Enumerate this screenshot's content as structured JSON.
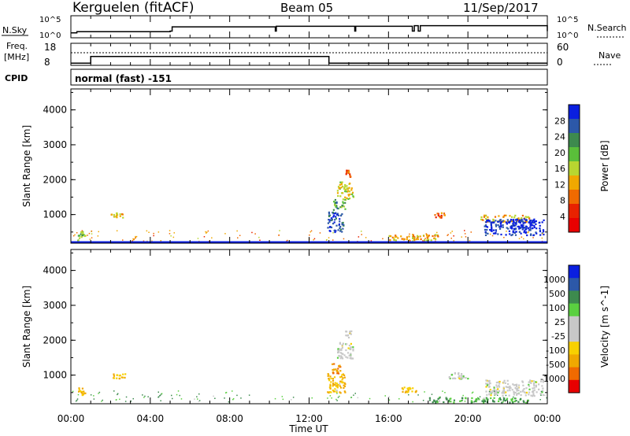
{
  "header": {
    "radar": "Kerguelen (fitACF)",
    "beam": "Beam 05",
    "date": "11/Sep/2017"
  },
  "top_panel": {
    "nsky_label": "N.Sky",
    "nsky_ticks": [
      "10^5",
      "10^0"
    ],
    "nsearch_label": "N.Search",
    "nsearch_ticks": [
      "10^5",
      "10^0"
    ]
  },
  "freq_panel": {
    "freq_label_line1": "Freq.",
    "freq_label_line2": "[MHz]",
    "freq_ticks": [
      "18",
      "8"
    ],
    "nave_label": "Nave",
    "nave_ticks": [
      "60",
      "0"
    ]
  },
  "cpid": {
    "label": "CPID",
    "program": "normal (fast) -151"
  },
  "x_axis": {
    "label": "Time UT",
    "ticks": [
      "00:00",
      "04:00",
      "08:00",
      "12:00",
      "16:00",
      "20:00",
      "00:00"
    ]
  },
  "colors": {
    "power_scale": [
      "#0a1fe0",
      "#2c58a8",
      "#3d8a4e",
      "#5abf3a",
      "#b8d630",
      "#f0a800",
      "#f06a00",
      "#e82200",
      "#e80000"
    ],
    "velocity_scale": [
      "#e80000",
      "#f06a00",
      "#f0a800",
      "#f8d000",
      "#c8c8c8",
      "#c8c8c8",
      "#5ad040",
      "#3d8a4e",
      "#2c58a8",
      "#0a1fe0"
    ]
  },
  "chart_data": [
    {
      "type": "line",
      "name": "nsky-nsearch",
      "x": [
        0,
        0.3,
        5,
        5.1,
        10.3,
        10.35,
        14.3,
        14.35,
        17.2,
        17.3,
        17.5,
        17.6,
        24
      ],
      "nsky": [
        0.4,
        0.5,
        0.55,
        0.9,
        0.55,
        0.95,
        0.55,
        0.95,
        0.55,
        1.0,
        0.55,
        1.0,
        0.55
      ]
    },
    {
      "type": "line",
      "name": "frequency-nave",
      "x": [
        0,
        1,
        13,
        24
      ],
      "freq_mhz": [
        9,
        12,
        9,
        9
      ],
      "nave": [
        48,
        48,
        48,
        48
      ],
      "freq_ylim": [
        8,
        18
      ],
      "nave_ylim": [
        0,
        60
      ]
    },
    {
      "type": "heatmap",
      "name": "power",
      "ylabel": "Slant Range [km]",
      "xlabel": "Time UT",
      "xlim": [
        0,
        24
      ],
      "ylim": [
        180,
        4600
      ],
      "yticks": [
        1000,
        2000,
        3000,
        4000
      ],
      "colorbar_label": "Power [dB]",
      "colorbar_ticks": [
        4,
        8,
        12,
        16,
        20,
        24,
        28
      ],
      "colorbar_range": [
        0,
        30
      ],
      "patches": [
        {
          "t": 0.3,
          "r": 400,
          "dt": 0.4,
          "dr": 300,
          "v": 18
        },
        {
          "t": 2.0,
          "r": 1000,
          "dt": 0.6,
          "dr": 150,
          "v": 12
        },
        {
          "t": 12.9,
          "r": 800,
          "dt": 0.8,
          "dr": 600,
          "v": 26
        },
        {
          "t": 13.4,
          "r": 1700,
          "dt": 0.8,
          "dr": 500,
          "v": 14
        },
        {
          "t": 13.2,
          "r": 1300,
          "dt": 0.6,
          "dr": 300,
          "v": 20
        },
        {
          "t": 13.8,
          "r": 2200,
          "dt": 0.3,
          "dr": 200,
          "v": 8
        },
        {
          "t": 16.0,
          "r": 350,
          "dt": 2.5,
          "dr": 200,
          "v": 12
        },
        {
          "t": 18.3,
          "r": 1000,
          "dt": 0.5,
          "dr": 150,
          "v": 8
        },
        {
          "t": 20.6,
          "r": 900,
          "dt": 2.5,
          "dr": 200,
          "v": 12
        },
        {
          "t": 20.8,
          "r": 650,
          "dt": 3.0,
          "dr": 450,
          "v": 28
        },
        {
          "t": 22.0,
          "r": 750,
          "dt": 1.4,
          "dr": 300,
          "v": 30
        }
      ]
    },
    {
      "type": "heatmap",
      "name": "velocity",
      "ylabel": "Slant Range [km]",
      "xlabel": "Time UT",
      "xlim": [
        0,
        24
      ],
      "ylim": [
        180,
        4600
      ],
      "yticks": [
        1000,
        2000,
        3000,
        4000
      ],
      "colorbar_label": "Velocity [m s^-1]",
      "colorbar_ticks": [
        "1000",
        "500",
        "100",
        "25",
        "-25",
        "-100",
        "-500",
        "-1000"
      ],
      "patches": [
        {
          "t": 0.3,
          "r": 550,
          "dt": 0.4,
          "dr": 200,
          "v": -100
        },
        {
          "t": 2.1,
          "r": 1000,
          "dt": 0.6,
          "dr": 150,
          "v": -100
        },
        {
          "t": 12.9,
          "r": 800,
          "dt": 0.9,
          "dr": 600,
          "v": -100
        },
        {
          "t": 13.1,
          "r": 1200,
          "dt": 0.5,
          "dr": 300,
          "v": -500
        },
        {
          "t": 13.4,
          "r": 1700,
          "dt": 0.8,
          "dr": 500,
          "v": 0
        },
        {
          "t": 13.8,
          "r": 2200,
          "dt": 0.3,
          "dr": 200,
          "v": 0
        },
        {
          "t": 16.5,
          "r": 600,
          "dt": 1.0,
          "dr": 150,
          "v": -100
        },
        {
          "t": 19.0,
          "r": 1000,
          "dt": 1.0,
          "dr": 200,
          "v": 0
        },
        {
          "t": 20.8,
          "r": 650,
          "dt": 3.0,
          "dr": 450,
          "v": 0
        },
        {
          "t": 18.0,
          "r": 300,
          "dt": 5.0,
          "dr": 150,
          "v": 100
        }
      ]
    }
  ]
}
